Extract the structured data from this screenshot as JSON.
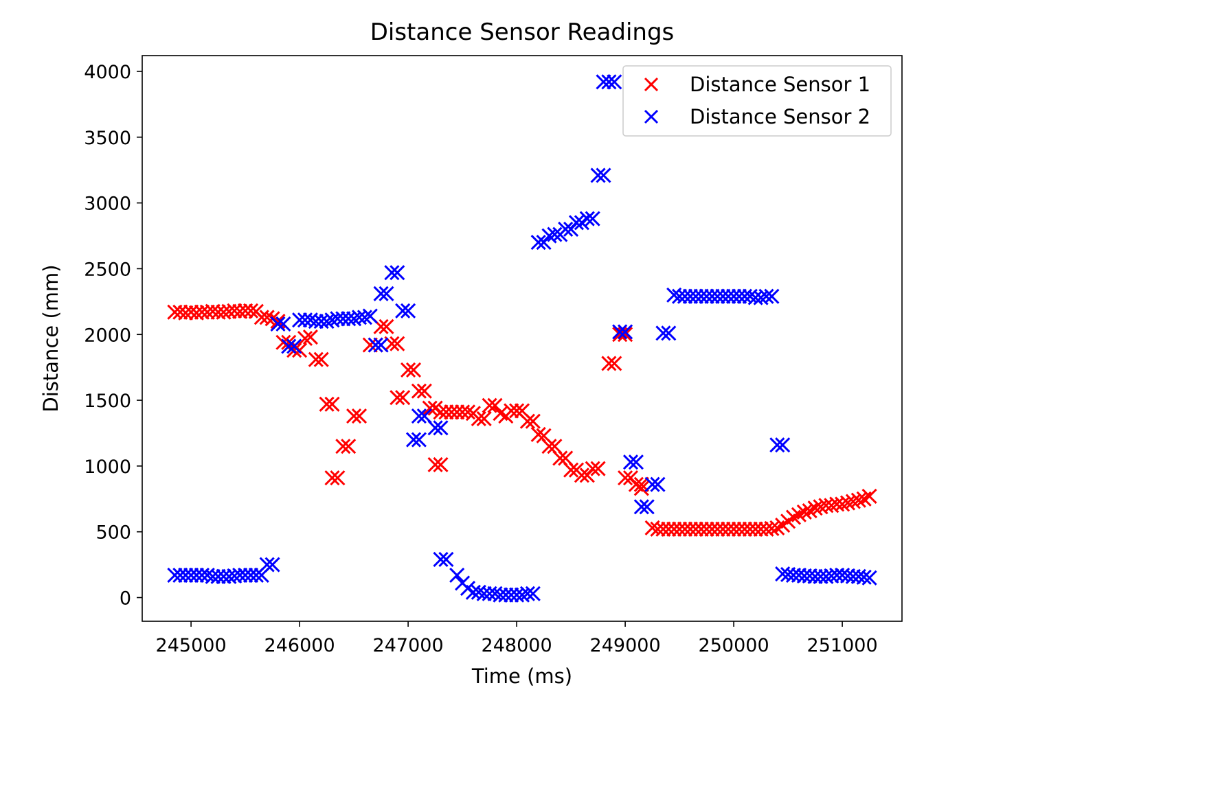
{
  "chart_data": {
    "type": "scatter",
    "title": "Distance Sensor Readings",
    "xlabel": "Time (ms)",
    "ylabel": "Distance (mm)",
    "xlim": [
      244550,
      251550
    ],
    "ylim": [
      -180,
      4120
    ],
    "xticks": [
      245000,
      246000,
      247000,
      248000,
      249000,
      250000,
      251000
    ],
    "yticks": [
      0,
      500,
      1000,
      1500,
      2000,
      2500,
      3000,
      3500,
      4000
    ],
    "grid": false,
    "legend_position": "upper-right",
    "marker": "x",
    "series": [
      {
        "name": "Distance Sensor 1",
        "color": "#ff0000",
        "points": [
          [
            244850,
            2170
          ],
          [
            244900,
            2170
          ],
          [
            244950,
            2165
          ],
          [
            245000,
            2170
          ],
          [
            245050,
            2165
          ],
          [
            245100,
            2170
          ],
          [
            245150,
            2170
          ],
          [
            245200,
            2175
          ],
          [
            245250,
            2170
          ],
          [
            245300,
            2170
          ],
          [
            245350,
            2175
          ],
          [
            245400,
            2180
          ],
          [
            245450,
            2175
          ],
          [
            245500,
            2180
          ],
          [
            245550,
            2180
          ],
          [
            245600,
            2175
          ],
          [
            245650,
            2130
          ],
          [
            245700,
            2130
          ],
          [
            245750,
            2120
          ],
          [
            245800,
            2100
          ],
          [
            245850,
            1940
          ],
          [
            245900,
            1940
          ],
          [
            245950,
            1880
          ],
          [
            246000,
            1880
          ],
          [
            246050,
            1970
          ],
          [
            246100,
            1980
          ],
          [
            246150,
            1810
          ],
          [
            246200,
            1810
          ],
          [
            246250,
            1470
          ],
          [
            246300,
            1470
          ],
          [
            246300,
            910
          ],
          [
            246350,
            910
          ],
          [
            246400,
            1150
          ],
          [
            246450,
            1150
          ],
          [
            246500,
            1380
          ],
          [
            246550,
            1380
          ],
          [
            246650,
            1920
          ],
          [
            246700,
            1920
          ],
          [
            246750,
            2060
          ],
          [
            246800,
            2060
          ],
          [
            246850,
            1930
          ],
          [
            246900,
            1930
          ],
          [
            246900,
            1520
          ],
          [
            246950,
            1520
          ],
          [
            247000,
            1730
          ],
          [
            247050,
            1730
          ],
          [
            247100,
            1570
          ],
          [
            247150,
            1570
          ],
          [
            247250,
            1010
          ],
          [
            247300,
            1010
          ],
          [
            247200,
            1440
          ],
          [
            247250,
            1440
          ],
          [
            247300,
            1410
          ],
          [
            247350,
            1410
          ],
          [
            247400,
            1410
          ],
          [
            247450,
            1410
          ],
          [
            247500,
            1410
          ],
          [
            247550,
            1410
          ],
          [
            247600,
            1400
          ],
          [
            247650,
            1360
          ],
          [
            247700,
            1360
          ],
          [
            247750,
            1460
          ],
          [
            247800,
            1460
          ],
          [
            247850,
            1400
          ],
          [
            247900,
            1380
          ],
          [
            247950,
            1420
          ],
          [
            248000,
            1420
          ],
          [
            248050,
            1420
          ],
          [
            248100,
            1340
          ],
          [
            248150,
            1340
          ],
          [
            248200,
            1240
          ],
          [
            248250,
            1230
          ],
          [
            248300,
            1150
          ],
          [
            248350,
            1150
          ],
          [
            248400,
            1060
          ],
          [
            248450,
            1060
          ],
          [
            248500,
            970
          ],
          [
            248550,
            970
          ],
          [
            248600,
            930
          ],
          [
            248650,
            930
          ],
          [
            248700,
            980
          ],
          [
            248750,
            980
          ],
          [
            248850,
            1780
          ],
          [
            248900,
            1780
          ],
          [
            248950,
            2000
          ],
          [
            249000,
            2000
          ],
          [
            249000,
            910
          ],
          [
            249050,
            910
          ],
          [
            249100,
            860
          ],
          [
            249150,
            860
          ],
          [
            249150,
            830
          ],
          [
            249250,
            530
          ],
          [
            249300,
            520
          ],
          [
            249350,
            520
          ],
          [
            249400,
            520
          ],
          [
            249450,
            520
          ],
          [
            249500,
            520
          ],
          [
            249550,
            520
          ],
          [
            249600,
            520
          ],
          [
            249650,
            520
          ],
          [
            249700,
            520
          ],
          [
            249750,
            520
          ],
          [
            249800,
            520
          ],
          [
            249850,
            520
          ],
          [
            249900,
            520
          ],
          [
            249950,
            520
          ],
          [
            250000,
            520
          ],
          [
            250050,
            520
          ],
          [
            250100,
            520
          ],
          [
            250150,
            520
          ],
          [
            250200,
            520
          ],
          [
            250250,
            520
          ],
          [
            250300,
            520
          ],
          [
            250350,
            525
          ],
          [
            250400,
            530
          ],
          [
            250450,
            550
          ],
          [
            250500,
            580
          ],
          [
            250550,
            610
          ],
          [
            250600,
            630
          ],
          [
            250650,
            650
          ],
          [
            250700,
            660
          ],
          [
            250750,
            680
          ],
          [
            250800,
            690
          ],
          [
            250850,
            700
          ],
          [
            250900,
            700
          ],
          [
            250950,
            710
          ],
          [
            251000,
            710
          ],
          [
            251050,
            720
          ],
          [
            251100,
            730
          ],
          [
            251150,
            740
          ],
          [
            251200,
            750
          ],
          [
            251250,
            770
          ]
        ]
      },
      {
        "name": "Distance Sensor 2",
        "color": "#0000ff",
        "points": [
          [
            244850,
            170
          ],
          [
            244900,
            170
          ],
          [
            244950,
            170
          ],
          [
            245000,
            170
          ],
          [
            245050,
            170
          ],
          [
            245100,
            170
          ],
          [
            245150,
            170
          ],
          [
            245200,
            160
          ],
          [
            245250,
            160
          ],
          [
            245300,
            160
          ],
          [
            245350,
            160
          ],
          [
            245400,
            165
          ],
          [
            245450,
            170
          ],
          [
            245500,
            170
          ],
          [
            245550,
            170
          ],
          [
            245600,
            170
          ],
          [
            245650,
            170
          ],
          [
            245700,
            250
          ],
          [
            245750,
            250
          ],
          [
            245800,
            2080
          ],
          [
            245850,
            2080
          ],
          [
            245900,
            1910
          ],
          [
            245950,
            1910
          ],
          [
            246000,
            2110
          ],
          [
            246050,
            2110
          ],
          [
            246100,
            2110
          ],
          [
            246150,
            2100
          ],
          [
            246200,
            2100
          ],
          [
            246250,
            2100
          ],
          [
            246300,
            2110
          ],
          [
            246350,
            2120
          ],
          [
            246400,
            2120
          ],
          [
            246450,
            2120
          ],
          [
            246500,
            2120
          ],
          [
            246550,
            2130
          ],
          [
            246600,
            2130
          ],
          [
            246650,
            2140
          ],
          [
            246700,
            1920
          ],
          [
            246750,
            1920
          ],
          [
            246750,
            2310
          ],
          [
            246800,
            2310
          ],
          [
            246850,
            2470
          ],
          [
            246900,
            2470
          ],
          [
            246950,
            2180
          ],
          [
            247000,
            2180
          ],
          [
            247050,
            1200
          ],
          [
            247100,
            1200
          ],
          [
            247100,
            1380
          ],
          [
            247150,
            1380
          ],
          [
            247250,
            1290
          ],
          [
            247300,
            1290
          ],
          [
            247300,
            290
          ],
          [
            247350,
            290
          ],
          [
            247450,
            170
          ],
          [
            247500,
            110
          ],
          [
            247550,
            70
          ],
          [
            247600,
            40
          ],
          [
            247650,
            40
          ],
          [
            247700,
            30
          ],
          [
            247750,
            30
          ],
          [
            247800,
            30
          ],
          [
            247850,
            20
          ],
          [
            247900,
            20
          ],
          [
            247950,
            20
          ],
          [
            248000,
            20
          ],
          [
            248050,
            20
          ],
          [
            248100,
            30
          ],
          [
            248150,
            30
          ],
          [
            248200,
            2700
          ],
          [
            248250,
            2700
          ],
          [
            248300,
            2750
          ],
          [
            248350,
            2760
          ],
          [
            248400,
            2760
          ],
          [
            248450,
            2800
          ],
          [
            248500,
            2800
          ],
          [
            248550,
            2850
          ],
          [
            248600,
            2850
          ],
          [
            248650,
            2880
          ],
          [
            248700,
            2880
          ],
          [
            248750,
            3210
          ],
          [
            248800,
            3210
          ],
          [
            248800,
            3920
          ],
          [
            248850,
            3920
          ],
          [
            248900,
            3920
          ],
          [
            248950,
            2020
          ],
          [
            249000,
            2020
          ],
          [
            249050,
            1030
          ],
          [
            249100,
            1030
          ],
          [
            249150,
            690
          ],
          [
            249200,
            690
          ],
          [
            249250,
            860
          ],
          [
            249300,
            860
          ],
          [
            249350,
            2010
          ],
          [
            249400,
            2010
          ],
          [
            249450,
            2300
          ],
          [
            249500,
            2290
          ],
          [
            249550,
            2290
          ],
          [
            249600,
            2290
          ],
          [
            249650,
            2290
          ],
          [
            249700,
            2290
          ],
          [
            249750,
            2290
          ],
          [
            249800,
            2290
          ],
          [
            249850,
            2290
          ],
          [
            249900,
            2290
          ],
          [
            249950,
            2290
          ],
          [
            250000,
            2290
          ],
          [
            250050,
            2290
          ],
          [
            250100,
            2290
          ],
          [
            250150,
            2290
          ],
          [
            250200,
            2280
          ],
          [
            250250,
            2280
          ],
          [
            250300,
            2290
          ],
          [
            250350,
            2290
          ],
          [
            250400,
            1160
          ],
          [
            250450,
            1160
          ],
          [
            250450,
            180
          ],
          [
            250500,
            175
          ],
          [
            250550,
            170
          ],
          [
            250600,
            170
          ],
          [
            250650,
            165
          ],
          [
            250700,
            165
          ],
          [
            250750,
            160
          ],
          [
            250800,
            160
          ],
          [
            250850,
            160
          ],
          [
            250900,
            165
          ],
          [
            250950,
            170
          ],
          [
            251000,
            170
          ],
          [
            251050,
            165
          ],
          [
            251100,
            160
          ],
          [
            251150,
            160
          ],
          [
            251200,
            155
          ],
          [
            251250,
            150
          ]
        ]
      }
    ]
  }
}
